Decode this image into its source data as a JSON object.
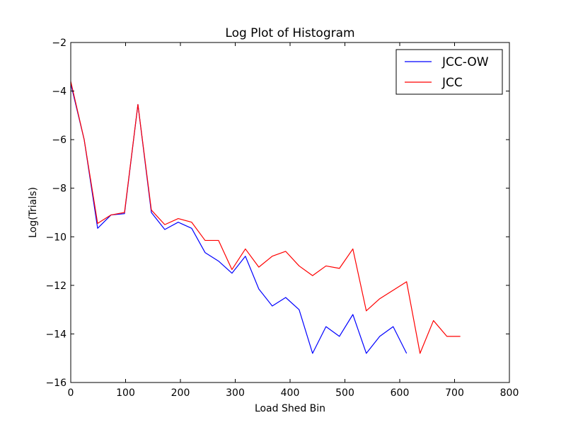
{
  "chart_data": {
    "type": "line",
    "title": "Log Plot of Histogram",
    "xlabel": "Load Shed Bin",
    "ylabel": "Log(Trials)",
    "xlim": [
      0,
      800
    ],
    "ylim": [
      -16,
      -2
    ],
    "xticks": [
      0,
      100,
      200,
      300,
      400,
      500,
      600,
      700,
      800
    ],
    "yticks": [
      -16,
      -14,
      -12,
      -10,
      -8,
      -6,
      -4,
      -2
    ],
    "grid": false,
    "legend_position": "top-right",
    "series": [
      {
        "name": "JCC-OW",
        "color": "#0000ff",
        "x": [
          0,
          24.5,
          49,
          73.5,
          98,
          122.5,
          147,
          171.5,
          196,
          220.5,
          245,
          269.5,
          294,
          318.5,
          343,
          367.5,
          392,
          416.5,
          441,
          465.5,
          490,
          514.5,
          539,
          563.5,
          588,
          612.5
        ],
        "y": [
          -3.7,
          -6.0,
          -9.65,
          -9.1,
          -9.05,
          -4.55,
          -9.0,
          -9.7,
          -9.4,
          -9.65,
          -10.65,
          -11.0,
          -11.5,
          -10.8,
          -12.15,
          -12.85,
          -12.5,
          -13.0,
          -14.8,
          -13.7,
          -14.1,
          -13.2,
          -14.8,
          -14.1,
          -13.7,
          -14.8
        ]
      },
      {
        "name": "JCC",
        "color": "#ff0000",
        "x": [
          0,
          24.5,
          49,
          73.5,
          98,
          122.5,
          147,
          171.5,
          196,
          220.5,
          245,
          269.5,
          294,
          318.5,
          343,
          367.5,
          392,
          416.5,
          441,
          465.5,
          490,
          514.5,
          539,
          563.5,
          588,
          612.5,
          637,
          661.5,
          686,
          710.5
        ],
        "y": [
          -3.6,
          -6.0,
          -9.45,
          -9.1,
          -9.0,
          -4.55,
          -8.9,
          -9.5,
          -9.25,
          -9.4,
          -10.15,
          -10.15,
          -11.35,
          -10.5,
          -11.25,
          -10.8,
          -10.6,
          -11.2,
          -11.6,
          -11.2,
          -11.3,
          -10.5,
          -13.05,
          -12.55,
          -12.2,
          -11.85,
          -14.8,
          -13.45,
          -14.1,
          -14.1
        ]
      }
    ]
  }
}
